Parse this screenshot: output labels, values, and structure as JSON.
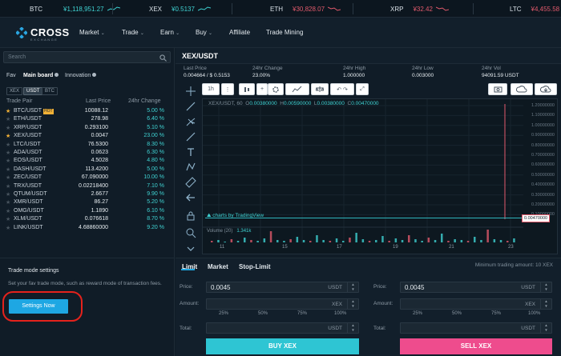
{
  "ticker": [
    {
      "sym": "BTC",
      "price": "¥1,118,951.27",
      "color": "up"
    },
    {
      "sym": "XEX",
      "price": "¥0.5137",
      "color": "up"
    },
    {
      "sym": "ETH",
      "price": "¥30,828.07",
      "color": "down"
    },
    {
      "sym": "XRP",
      "price": "¥32.42",
      "color": "down"
    },
    {
      "sym": "LTC",
      "price": "¥4,455.58",
      "color": "down"
    }
  ],
  "brand": {
    "name": "CROSS",
    "sub": "EXCHANGE"
  },
  "nav": {
    "market": "Market",
    "trade": "Trade",
    "earn": "Earn",
    "buy": "Buy",
    "affiliate": "Affiliate",
    "mining": "Trade Mining"
  },
  "left": {
    "search_placeholder": "Search",
    "tabs": {
      "fav": "Fav",
      "main": "Main board",
      "innovation": "Innovation"
    },
    "chips": [
      "XEX",
      "USDT",
      "BTC"
    ],
    "headers": {
      "pair": "Trade Pair",
      "last": "Last Price",
      "change": "24hr Change"
    },
    "rows": [
      {
        "pair": "BTC/USDT",
        "last": "10088.12",
        "change": "5.00 %",
        "star": true,
        "hot": "HOT"
      },
      {
        "pair": "ETH/USDT",
        "last": "278.98",
        "change": "6.40 %",
        "star": false
      },
      {
        "pair": "XRP/USDT",
        "last": "0.293100",
        "change": "5.10 %",
        "star": false
      },
      {
        "pair": "XEX/USDT",
        "last": "0.0047",
        "change": "23.00 %",
        "star": true
      },
      {
        "pair": "LTC/USDT",
        "last": "76.5300",
        "change": "8.30 %",
        "star": false
      },
      {
        "pair": "ADA/USDT",
        "last": "0.0623",
        "change": "6.30 %",
        "star": false
      },
      {
        "pair": "EOS/USDT",
        "last": "4.5028",
        "change": "4.80 %",
        "star": false
      },
      {
        "pair": "DASH/USDT",
        "last": "113.4200",
        "change": "5.00 %",
        "star": false
      },
      {
        "pair": "ZEC/USDT",
        "last": "67.090000",
        "change": "10.00 %",
        "star": false
      },
      {
        "pair": "TRX/USDT",
        "last": "0.02218400",
        "change": "7.10 %",
        "star": false
      },
      {
        "pair": "QTUM/USDT",
        "last": "2.6677",
        "change": "9.90 %",
        "star": false
      },
      {
        "pair": "XMR/USDT",
        "last": "86.27",
        "change": "5.20 %",
        "star": false
      },
      {
        "pair": "OMG/USDT",
        "last": "1.1890",
        "change": "6.10 %",
        "star": false
      },
      {
        "pair": "XLM/USDT",
        "last": "0.076618",
        "change": "8.70 %",
        "star": false
      },
      {
        "pair": "LINK/USDT",
        "last": "4.68860000",
        "change": "9.20 %",
        "star": false
      }
    ]
  },
  "trade_mode": {
    "title": "Trade mode settings",
    "desc": "Set your fav trade mode, such as reward mode of transaction fees.",
    "button": "Settings Now"
  },
  "pair": {
    "title": "XEX/USDT"
  },
  "stats": [
    {
      "k": "Last Price",
      "v": "0.004664 / $ 0.5153"
    },
    {
      "k": "24hr Change",
      "v": "23.00%"
    },
    {
      "k": "24hr High",
      "v": "1.000000"
    },
    {
      "k": "24hr Low",
      "v": "0.003000"
    },
    {
      "k": "24hr Vol",
      "v": "94091.59 USDT"
    }
  ],
  "chart": {
    "interval": "1h",
    "ohlc_prefix": "XEX/USDT, 60",
    "o": "0.00380000",
    "h": "0.00590000",
    "l": "0.00380000",
    "c": "0.00470000",
    "watermark": "charts by TradingView",
    "volume_label": "Volume (20)",
    "volume_value": "1.341k",
    "x_ticks": [
      "11",
      "15",
      "17",
      "19",
      "21",
      "23"
    ],
    "y_ticks": [
      "1.20000000",
      "1.10000000",
      "1.00000000",
      "0.90000000",
      "0.80000000",
      "0.70000000",
      "0.60000000",
      "0.50000000",
      "0.40000000",
      "0.30000000",
      "0.20000000",
      "0.10000000"
    ],
    "price_tag": "0.00470000"
  },
  "order": {
    "tabs": {
      "limit": "Limit",
      "market": "Market",
      "stop": "Stop-Limit"
    },
    "min_amount": "Minimum trading amount: 10 XEX",
    "buy": {
      "price_label": "Price:",
      "price": "0.0045",
      "price_unit": "USDT",
      "amount_label": "Amount:",
      "amount_unit": "XEX",
      "total_label": "Total:",
      "total_unit": "USDT",
      "button": "BUY XEX"
    },
    "sell": {
      "price_label": "Price:",
      "price": "0.0045",
      "price_unit": "USDT",
      "amount_label": "Amount:",
      "amount_unit": "XEX",
      "total_label": "Total:",
      "total_unit": "USDT",
      "button": "SELL XEX"
    },
    "pcts": [
      "25%",
      "50%",
      "75%",
      "100%"
    ]
  },
  "colors": {
    "up": "#3fd2d2",
    "down": "#e25a6c",
    "buy": "#2ec5d3",
    "sell": "#ee4c8d",
    "accent": "#1ea7e3"
  }
}
